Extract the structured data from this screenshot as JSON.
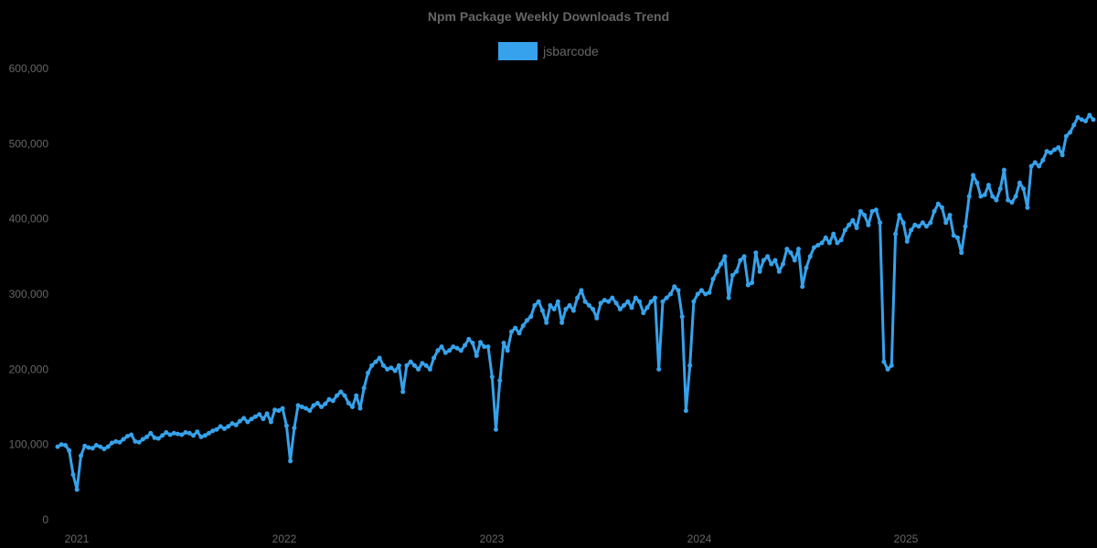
{
  "chart_data": {
    "type": "line",
    "title": "Npm Package Weekly Downloads Trend",
    "xlabel": "",
    "ylabel": "",
    "ylim": [
      0,
      600000
    ],
    "grid": false,
    "legend_position": "top",
    "y_ticks": [
      "0",
      "100,000",
      "200,000",
      "300,000",
      "400,000",
      "500,000",
      "600,000"
    ],
    "x_ticks": [
      "2021",
      "2022",
      "2023",
      "2024",
      "2025"
    ],
    "series": [
      {
        "name": "jsbarcode",
        "color": "#36a2eb",
        "start": "2020-12-13",
        "interval": "weekly",
        "values": [
          97000,
          100000,
          99000,
          92000,
          60000,
          40000,
          85000,
          98000,
          96000,
          95000,
          99000,
          97000,
          94000,
          97000,
          102000,
          104000,
          103000,
          107000,
          111000,
          113000,
          104000,
          103000,
          107000,
          110000,
          115000,
          109000,
          108000,
          112000,
          116000,
          113000,
          115000,
          114000,
          113000,
          116000,
          115000,
          112000,
          117000,
          110000,
          112000,
          115000,
          118000,
          120000,
          124000,
          121000,
          124000,
          128000,
          126000,
          131000,
          135000,
          130000,
          134000,
          137000,
          140000,
          134000,
          141000,
          130000,
          146000,
          145000,
          148000,
          125000,
          78000,
          122000,
          152000,
          150000,
          148000,
          145000,
          152000,
          155000,
          150000,
          154000,
          160000,
          158000,
          165000,
          170000,
          165000,
          155000,
          150000,
          165000,
          148000,
          175000,
          195000,
          205000,
          210000,
          215000,
          205000,
          200000,
          202000,
          198000,
          205000,
          170000,
          205000,
          210000,
          205000,
          200000,
          208000,
          205000,
          200000,
          215000,
          225000,
          230000,
          222000,
          225000,
          230000,
          228000,
          225000,
          232000,
          240000,
          235000,
          218000,
          236000,
          230000,
          230000,
          190000,
          120000,
          185000,
          235000,
          225000,
          250000,
          255000,
          248000,
          258000,
          265000,
          270000,
          285000,
          290000,
          278000,
          262000,
          285000,
          280000,
          290000,
          262000,
          280000,
          285000,
          278000,
          295000,
          305000,
          290000,
          285000,
          280000,
          268000,
          288000,
          292000,
          290000,
          295000,
          288000,
          280000,
          285000,
          290000,
          282000,
          295000,
          290000,
          275000,
          282000,
          290000,
          295000,
          200000,
          290000,
          295000,
          300000,
          310000,
          305000,
          270000,
          145000,
          205000,
          290000,
          300000,
          305000,
          300000,
          302000,
          320000,
          330000,
          340000,
          350000,
          295000,
          325000,
          330000,
          345000,
          350000,
          312000,
          315000,
          355000,
          330000,
          345000,
          350000,
          340000,
          345000,
          330000,
          340000,
          360000,
          355000,
          345000,
          360000,
          310000,
          335000,
          350000,
          362000,
          365000,
          368000,
          375000,
          368000,
          380000,
          368000,
          372000,
          385000,
          392000,
          398000,
          388000,
          410000,
          405000,
          392000,
          410000,
          412000,
          395000,
          210000,
          200000,
          205000,
          380000,
          405000,
          395000,
          370000,
          385000,
          392000,
          390000,
          395000,
          390000,
          395000,
          410000,
          420000,
          415000,
          395000,
          405000,
          378000,
          375000,
          355000,
          390000,
          430000,
          458000,
          448000,
          430000,
          432000,
          445000,
          430000,
          425000,
          440000,
          465000,
          425000,
          422000,
          430000,
          448000,
          440000,
          415000,
          470000,
          475000,
          470000,
          478000,
          490000,
          488000,
          492000,
          495000,
          485000,
          510000,
          515000,
          525000,
          535000,
          532000,
          530000,
          538000,
          532000
        ]
      }
    ]
  },
  "header": {
    "title": "Npm Package Weekly Downloads Trend"
  },
  "legend": {
    "items": [
      {
        "label": "jsbarcode",
        "color": "#36a2eb"
      }
    ]
  },
  "axes": {
    "y_labels": [
      "0",
      "100,000",
      "200,000",
      "300,000",
      "400,000",
      "500,000",
      "600,000"
    ],
    "x_labels": [
      "2021",
      "2022",
      "2023",
      "2024",
      "2025"
    ]
  }
}
